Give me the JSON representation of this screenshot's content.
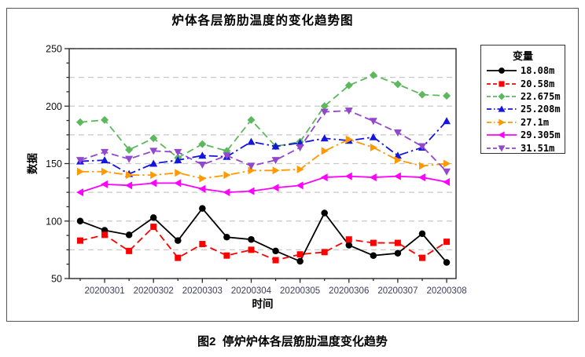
{
  "figure": {
    "title": "炉体各层筋肋温度的变化趋势图",
    "caption": "图2  停炉炉体各层筋肋温度变化趋势"
  },
  "chart_data": {
    "type": "line",
    "title": "炉体各层筋肋温度的变化趋势图",
    "xlabel": "时间",
    "ylabel": "数据",
    "ylim": [
      50,
      250
    ],
    "yticks": [
      50,
      100,
      150,
      200,
      250
    ],
    "grid": "horizontal dashed gridlines every 25 units",
    "legend_title": "变量",
    "legend_position": "right",
    "x_tick_labels": [
      "20200301",
      "20200302",
      "20200303",
      "20200304",
      "20200305",
      "20200306",
      "20200307",
      "20200308"
    ],
    "points_note": "16 samples at half-day intervals; axis ticks fall on odd sample indices",
    "tick_indices": [
      1,
      3,
      5,
      7,
      9,
      11,
      13,
      15
    ],
    "series": [
      {
        "name": "18.08m",
        "color": "#000000",
        "marker": "circle",
        "line": "solid",
        "values": [
          100,
          92,
          88,
          103,
          83,
          111,
          86,
          84,
          74,
          65,
          107,
          79,
          70,
          72,
          89,
          64
        ]
      },
      {
        "name": "20.58m",
        "color": "#ff0000",
        "marker": "square",
        "line": "dashed",
        "values": [
          83,
          88,
          74,
          95,
          68,
          80,
          70,
          75,
          66,
          71,
          73,
          84,
          81,
          81,
          68,
          82
        ]
      },
      {
        "name": "22.675m",
        "color": "#5cb85c",
        "marker": "diamond",
        "line": "dashed",
        "values": [
          186,
          188,
          162,
          172,
          155,
          167,
          161,
          188,
          165,
          169,
          200,
          218,
          227,
          219,
          210,
          209
        ]
      },
      {
        "name": "25.208m",
        "color": "#1515dd",
        "marker": "triangle-up",
        "line": "dashdot",
        "values": [
          152,
          153,
          141,
          150,
          153,
          157,
          156,
          169,
          165,
          168,
          172,
          170,
          173,
          157,
          164,
          187
        ]
      },
      {
        "name": "27.1m",
        "color": "#ff9900",
        "marker": "triangle-right",
        "line": "dashdot",
        "values": [
          143,
          143,
          140,
          140,
          142,
          137,
          140,
          144,
          144,
          145,
          161,
          171,
          164,
          153,
          148,
          150
        ]
      },
      {
        "name": "29.305m",
        "color": "#ff00ff",
        "marker": "triangle-left",
        "line": "solid",
        "values": [
          125,
          132,
          131,
          133,
          133,
          128,
          125,
          126,
          129,
          131,
          138,
          139,
          138,
          139,
          138,
          134
        ]
      },
      {
        "name": "31.51m",
        "color": "#9347cd",
        "marker": "triangle-down",
        "line": "dashed",
        "values": [
          153,
          160,
          154,
          161,
          160,
          149,
          157,
          148,
          153,
          164,
          195,
          196,
          187,
          177,
          165,
          143
        ]
      }
    ]
  }
}
